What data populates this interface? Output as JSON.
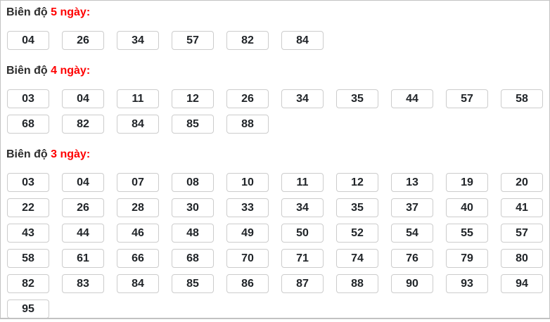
{
  "panel": {
    "sections": [
      {
        "title_prefix": "Biên độ",
        "title_highlight": "5 ngày:",
        "numbers": [
          "04",
          "26",
          "34",
          "57",
          "82",
          "84"
        ]
      },
      {
        "title_prefix": "Biên độ",
        "title_highlight": "4 ngày:",
        "numbers": [
          "03",
          "04",
          "11",
          "12",
          "26",
          "34",
          "35",
          "44",
          "57",
          "58",
          "68",
          "82",
          "84",
          "85",
          "88"
        ]
      },
      {
        "title_prefix": "Biên độ",
        "title_highlight": "3 ngày:",
        "numbers": [
          "03",
          "04",
          "07",
          "08",
          "10",
          "11",
          "12",
          "13",
          "19",
          "20",
          "22",
          "26",
          "28",
          "30",
          "33",
          "34",
          "35",
          "37",
          "40",
          "41",
          "43",
          "44",
          "46",
          "48",
          "49",
          "50",
          "52",
          "54",
          "55",
          "57",
          "58",
          "61",
          "66",
          "68",
          "70",
          "71",
          "74",
          "76",
          "79",
          "80",
          "82",
          "83",
          "84",
          "85",
          "86",
          "87",
          "88",
          "90",
          "93",
          "94",
          "95"
        ]
      }
    ],
    "colors": {
      "title_text": "#2d2d2d",
      "highlight_text": "#ff0000",
      "number_text": "#212529",
      "box_border": "#cccccc",
      "panel_border": "#c2c2c2"
    }
  }
}
